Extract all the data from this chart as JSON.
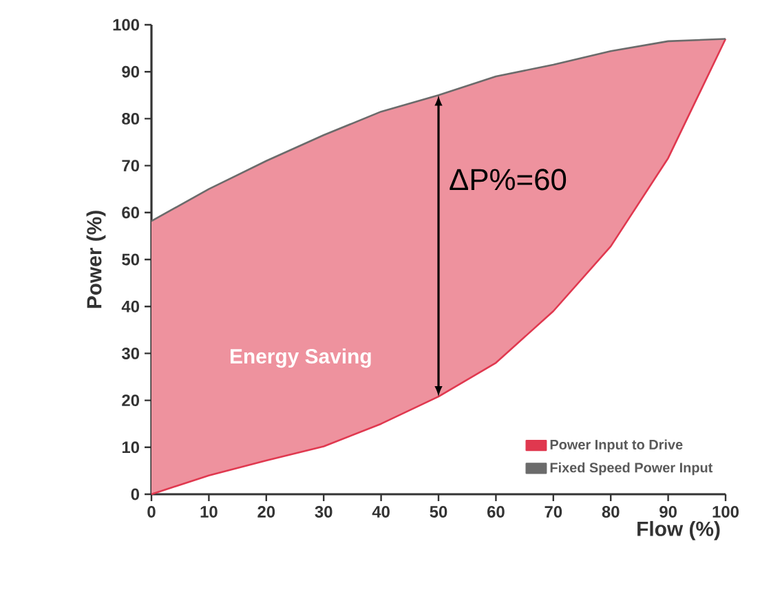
{
  "chart_data": {
    "type": "line",
    "xlabel": "Flow (%)",
    "ylabel": "Power (%)",
    "x": [
      0,
      10,
      20,
      30,
      40,
      50,
      60,
      70,
      80,
      90,
      100
    ],
    "series": [
      {
        "name": "Power Input to Drive",
        "color": "#e0384f",
        "values": [
          0,
          4,
          7.2,
          10.2,
          15,
          20.8,
          28,
          39,
          52.8,
          71.6,
          97
        ]
      },
      {
        "name": "Fixed Speed Power Input",
        "color": "#6b6b6b",
        "values": [
          58.2,
          65,
          71,
          76.5,
          81.5,
          85,
          89,
          91.5,
          94.4,
          96.5,
          97
        ]
      }
    ],
    "xlim": [
      0,
      100
    ],
    "ylim": [
      0,
      100
    ],
    "xticks": [
      0,
      10,
      20,
      30,
      40,
      50,
      60,
      70,
      80,
      90,
      100
    ],
    "yticks": [
      0,
      10,
      20,
      30,
      40,
      50,
      60,
      70,
      80,
      90,
      100
    ],
    "annotations": [
      "ΔP%=60",
      "Energy Saving"
    ],
    "legend": "bottom right",
    "grid": false,
    "marker": "none",
    "line_style": "solid"
  }
}
